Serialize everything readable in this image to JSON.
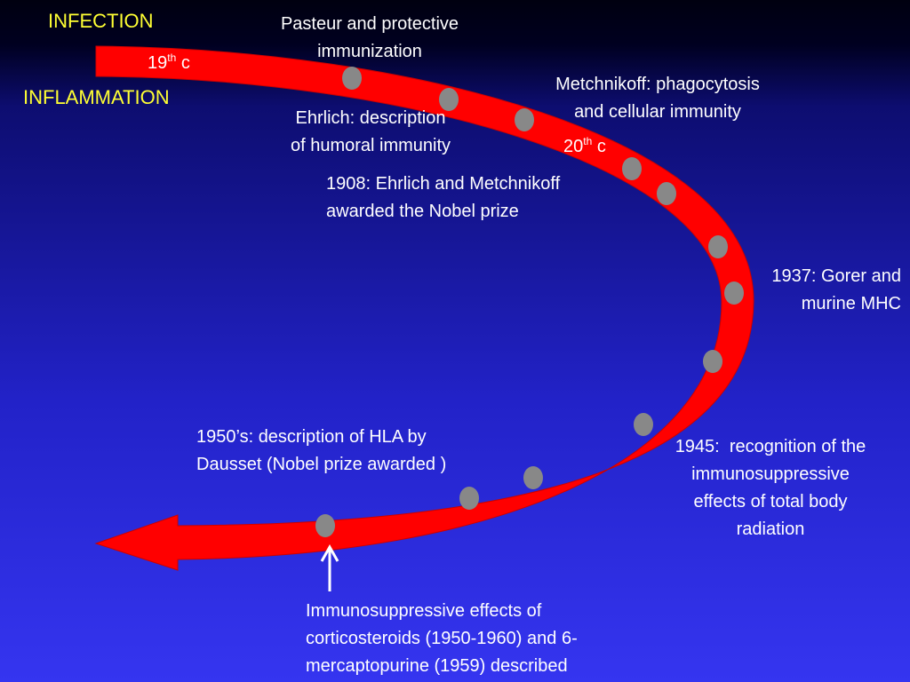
{
  "labels": {
    "infection": "INFECTION",
    "inflammation": "INFLAMMATION"
  },
  "eras": [
    {
      "number": "19",
      "sup": "th",
      "suffix": "c"
    },
    {
      "number": "20",
      "sup": "th",
      "suffix": "c"
    }
  ],
  "events": [
    {
      "lines": [
        "Pasteur and protective",
        "immunization"
      ]
    },
    {
      "lines": [
        "Metchnikoff: phagocytosis",
        "and cellular immunity"
      ]
    },
    {
      "lines": [
        "Ehrlich: description",
        "of humoral immunity"
      ]
    },
    {
      "lines": [
        "1908: Ehrlich and Metchnikoff",
        "awarded the Nobel prize"
      ]
    },
    {
      "lines": [
        "1937: Gorer and",
        "murine MHC"
      ]
    },
    {
      "lines": [
        "1945:  recognition of the",
        "immunosuppressive",
        "effects of total body",
        "radiation"
      ]
    },
    {
      "lines": [
        "1950’s: description of HLA by",
        "Dausset (Nobel prize awarded )"
      ]
    },
    {
      "lines": [
        "Immunosuppressive effects of",
        "corticosteroids (1950-1960) and 6-",
        "mercaptopurine (1959) described"
      ]
    }
  ]
}
